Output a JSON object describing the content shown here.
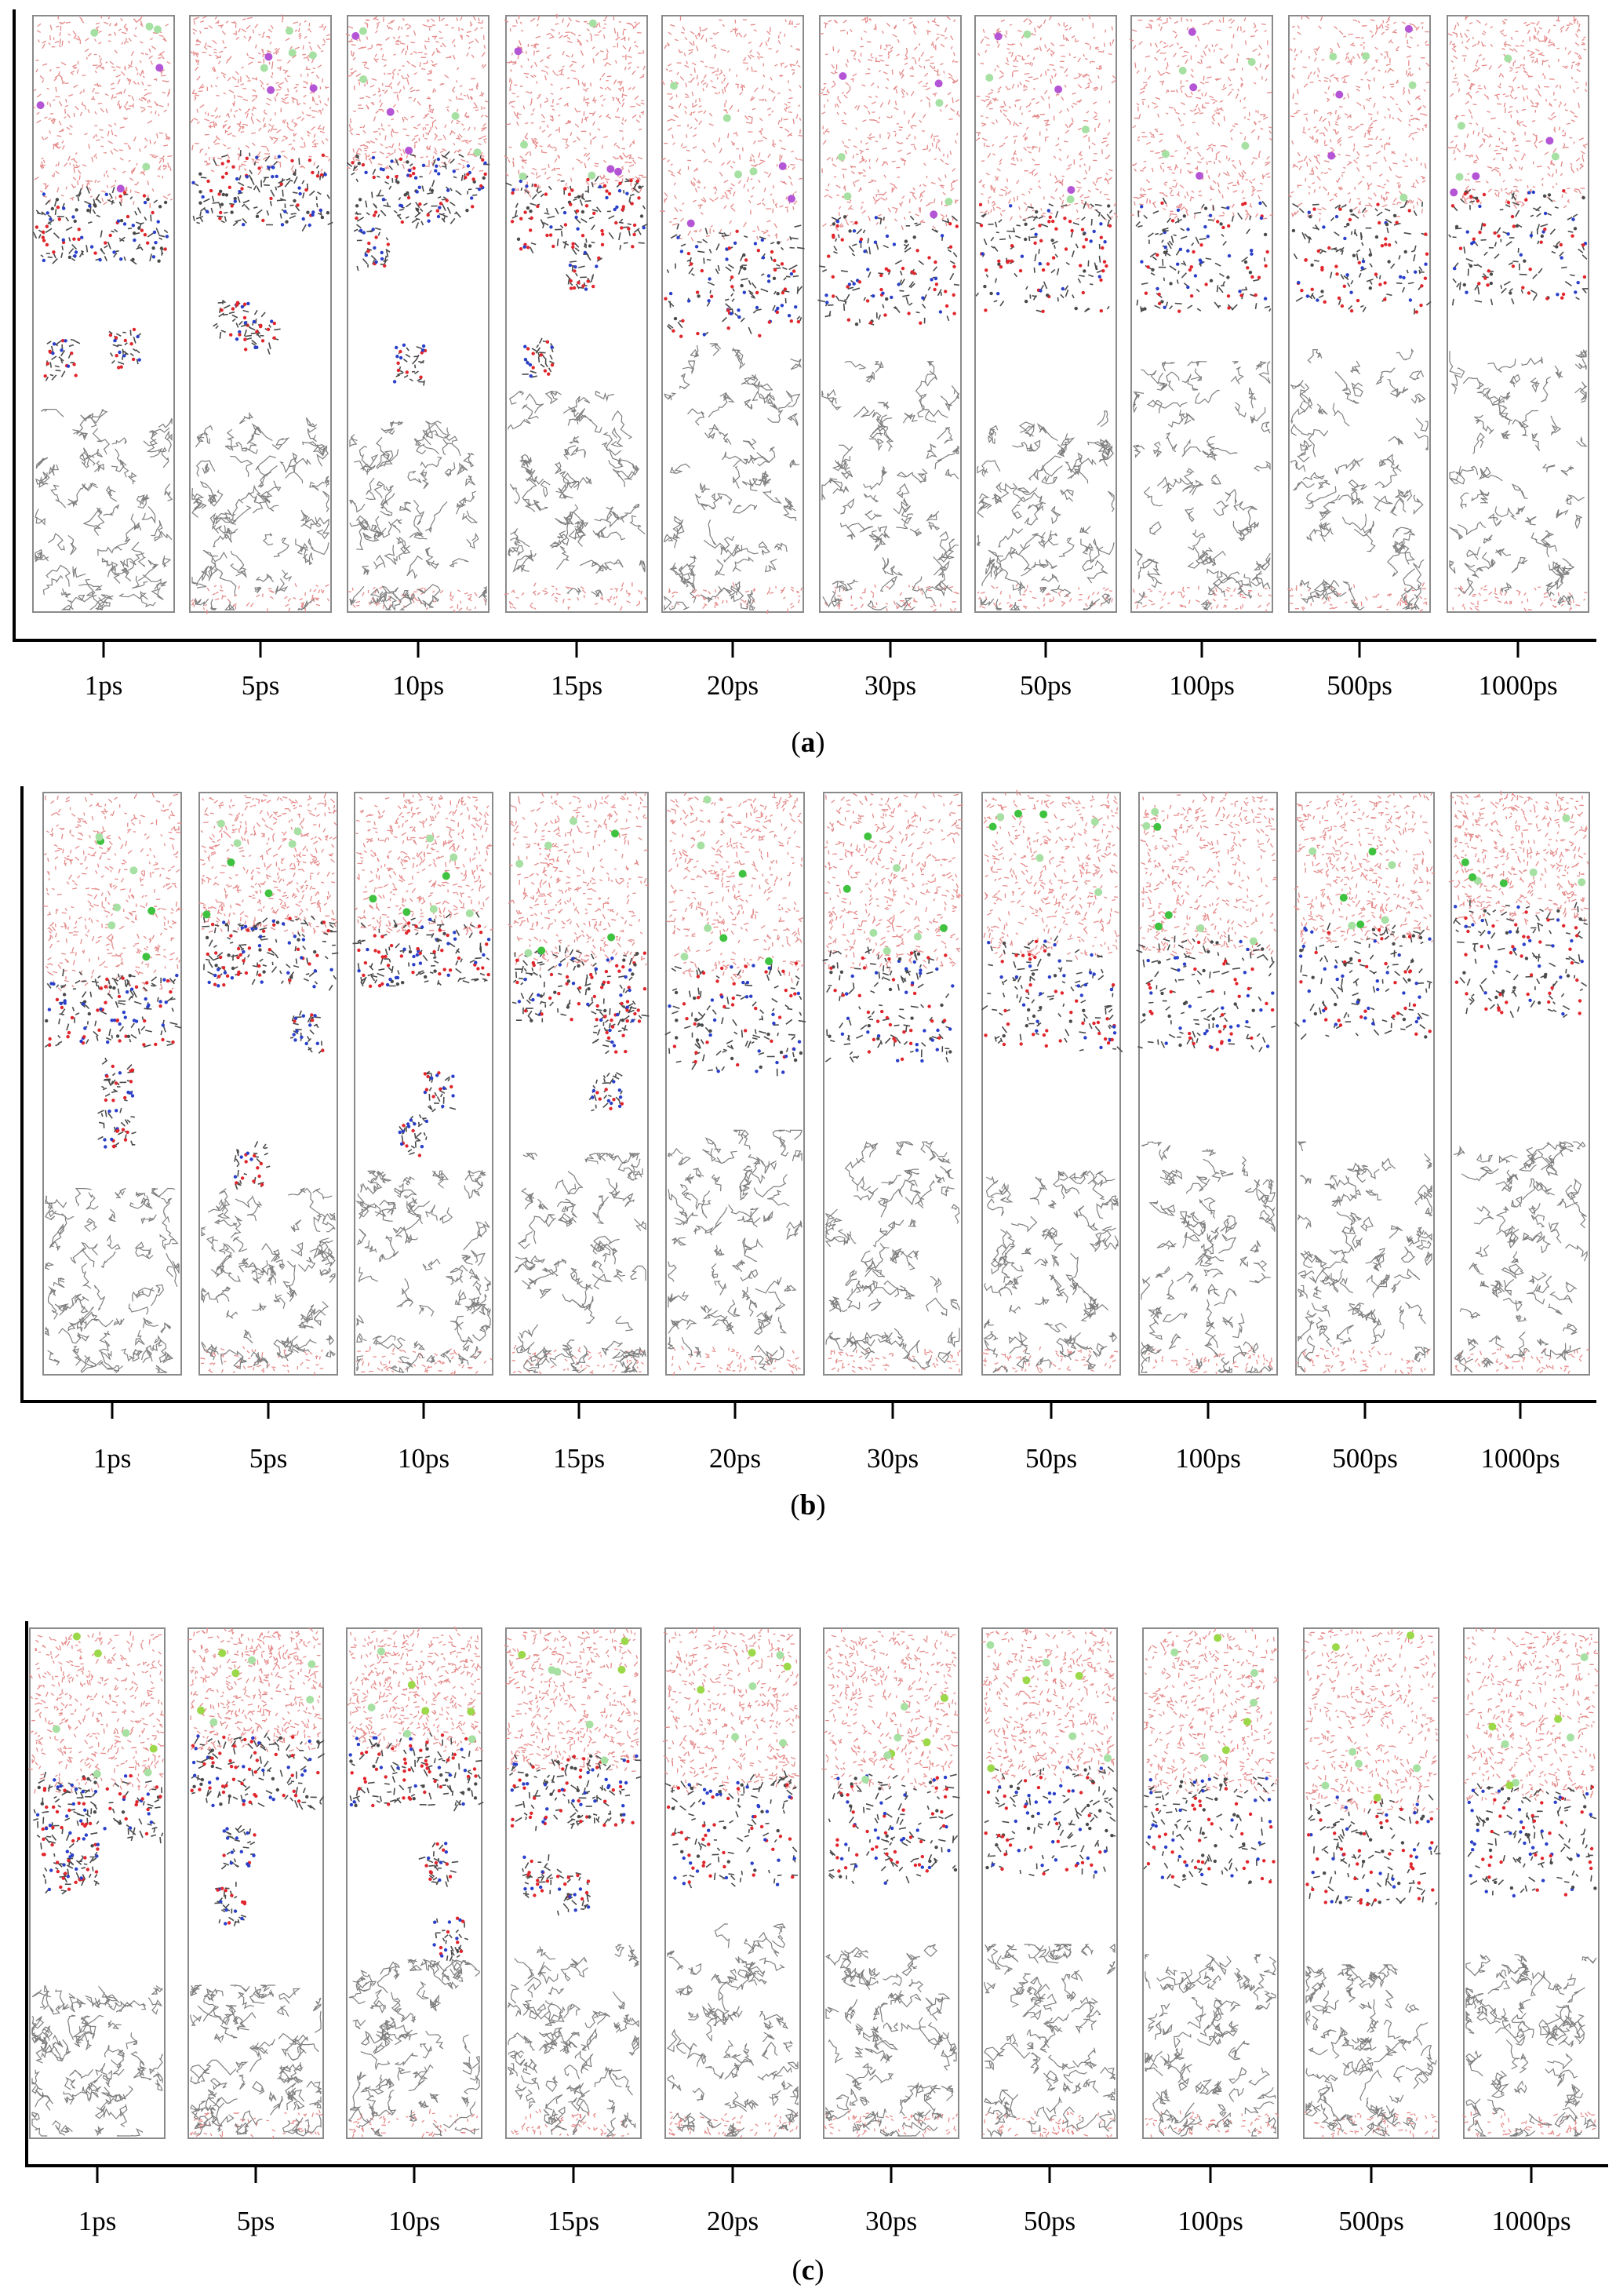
{
  "figure": {
    "panels": [
      {
        "id": "a",
        "caption_letter": "a",
        "time_labels": [
          "1ps",
          "5ps",
          "10ps",
          "15ps",
          "20ps",
          "30ps",
          "50ps",
          "100ps",
          "500ps",
          "1000ps"
        ],
        "ion_color": "#b455d6",
        "ion_color_2": "#a6e0a2",
        "water_fraction": [
          0.32,
          0.26,
          0.26,
          0.3,
          0.38,
          0.36,
          0.34,
          0.34,
          0.34,
          0.32
        ],
        "hydrocarbon_start_fraction": [
          0.66,
          0.66,
          0.68,
          0.63,
          0.55,
          0.58,
          0.66,
          0.58,
          0.56,
          0.56
        ]
      },
      {
        "id": "b",
        "caption_letter": "b",
        "time_labels": [
          "1ps",
          "5ps",
          "10ps",
          "15ps",
          "20ps",
          "30ps",
          "50ps",
          "100ps",
          "500ps",
          "1000ps"
        ],
        "ion_color": "#3fc23f",
        "ion_color_2": "#a6e0a2",
        "water_fraction": [
          0.34,
          0.24,
          0.24,
          0.3,
          0.32,
          0.3,
          0.28,
          0.28,
          0.26,
          0.22
        ],
        "hydrocarbon_start_fraction": [
          0.68,
          0.68,
          0.65,
          0.62,
          0.58,
          0.6,
          0.65,
          0.6,
          0.6,
          0.6
        ]
      },
      {
        "id": "c",
        "caption_letter": "c",
        "time_labels": [
          "1ps",
          "5ps",
          "10ps",
          "15ps",
          "20ps",
          "30ps",
          "50ps",
          "100ps",
          "500ps",
          "1000ps"
        ],
        "ion_color": "#9bd84a",
        "ion_color_2": "#a6e0a2",
        "water_fraction": [
          0.32,
          0.24,
          0.24,
          0.28,
          0.32,
          0.32,
          0.3,
          0.32,
          0.36,
          0.34
        ],
        "hydrocarbon_start_fraction": [
          0.7,
          0.7,
          0.65,
          0.62,
          0.58,
          0.62,
          0.62,
          0.64,
          0.66,
          0.64
        ]
      }
    ],
    "colors": {
      "water": "#e58a8a",
      "hydrocarbon": "#7f7f7f",
      "oxygen": "#e0262c",
      "nitrogen": "#2a3fc9",
      "carbon": "#4a4a4a",
      "frame": "#8a8a8a"
    }
  }
}
